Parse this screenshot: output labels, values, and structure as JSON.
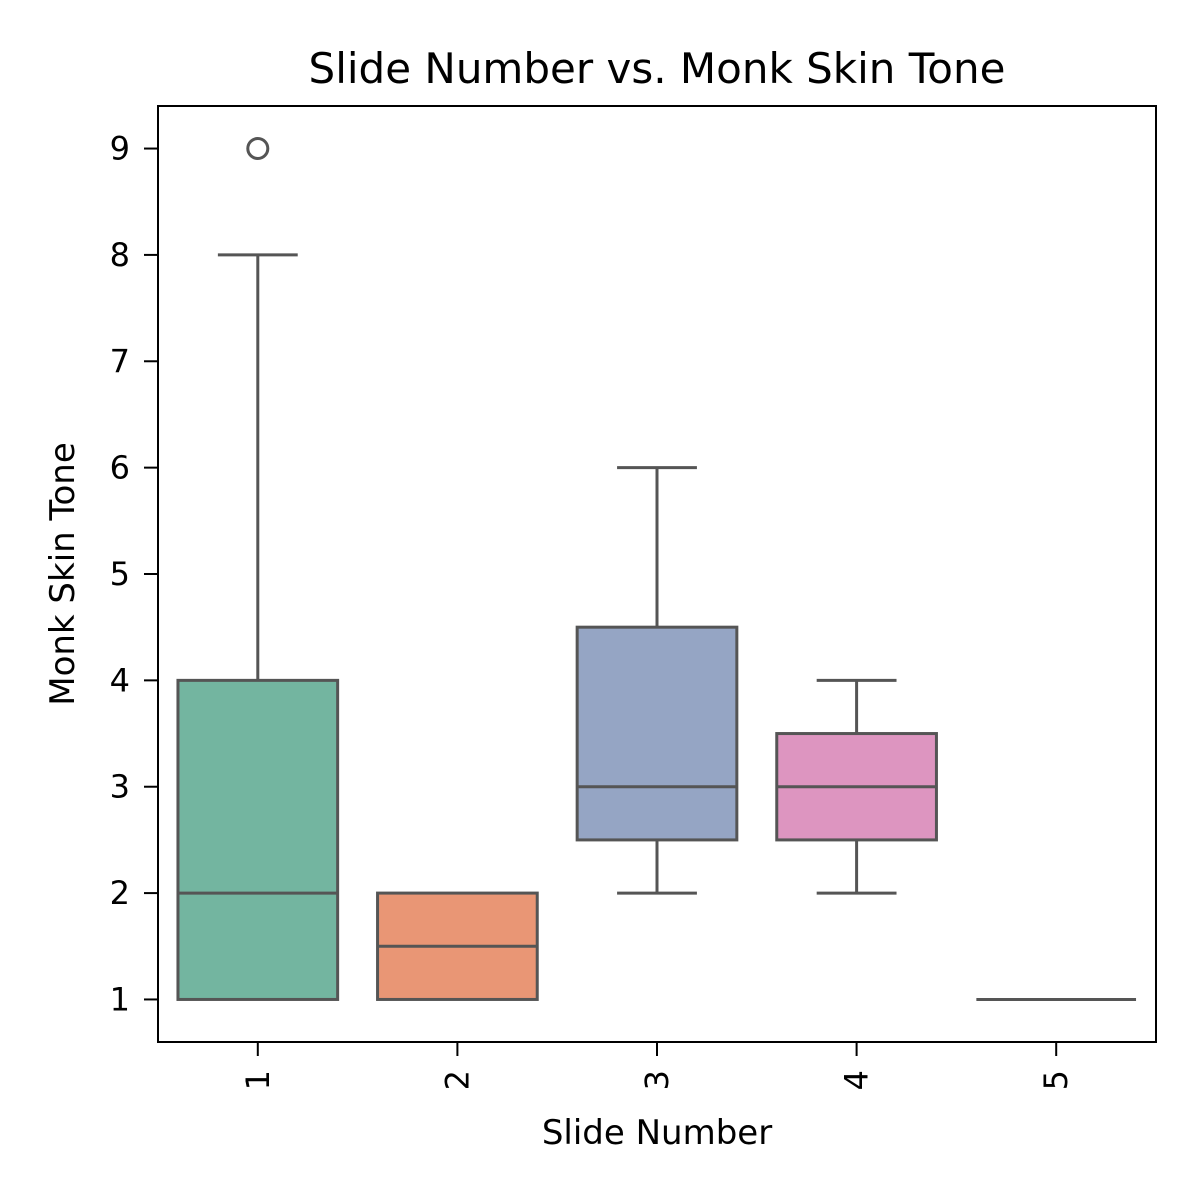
{
  "chart_data": {
    "type": "box",
    "title": "Slide Number vs. Monk Skin Tone",
    "xlabel": "Slide Number",
    "ylabel": "Monk Skin Tone",
    "categories": [
      "1",
      "2",
      "3",
      "4",
      "5"
    ],
    "yticks": [
      "1",
      "2",
      "3",
      "4",
      "5",
      "6",
      "7",
      "8",
      "9"
    ],
    "ylim": [
      0.6,
      9.4
    ],
    "grid": false,
    "boxes": [
      {
        "category": "1",
        "whisker_low": 1,
        "q1": 1,
        "median": 2,
        "q3": 4,
        "whisker_high": 8,
        "outliers": [
          9
        ],
        "color": "#73b5a0"
      },
      {
        "category": "2",
        "whisker_low": 1,
        "q1": 1,
        "median": 1.5,
        "q3": 2,
        "whisker_high": 2,
        "outliers": [],
        "color": "#e99675"
      },
      {
        "category": "3",
        "whisker_low": 2,
        "q1": 2.5,
        "median": 3,
        "q3": 4.5,
        "whisker_high": 6,
        "outliers": [],
        "color": "#95a5c4"
      },
      {
        "category": "4",
        "whisker_low": 2,
        "q1": 2.5,
        "median": 3,
        "q3": 3.5,
        "whisker_high": 4,
        "outliers": [],
        "color": "#dd95c0"
      },
      {
        "category": "5",
        "whisker_low": 1,
        "q1": 1,
        "median": 1,
        "q3": 1,
        "whisker_high": 1,
        "outliers": [],
        "color": "#a6d854"
      }
    ],
    "line_color": "#555555"
  }
}
